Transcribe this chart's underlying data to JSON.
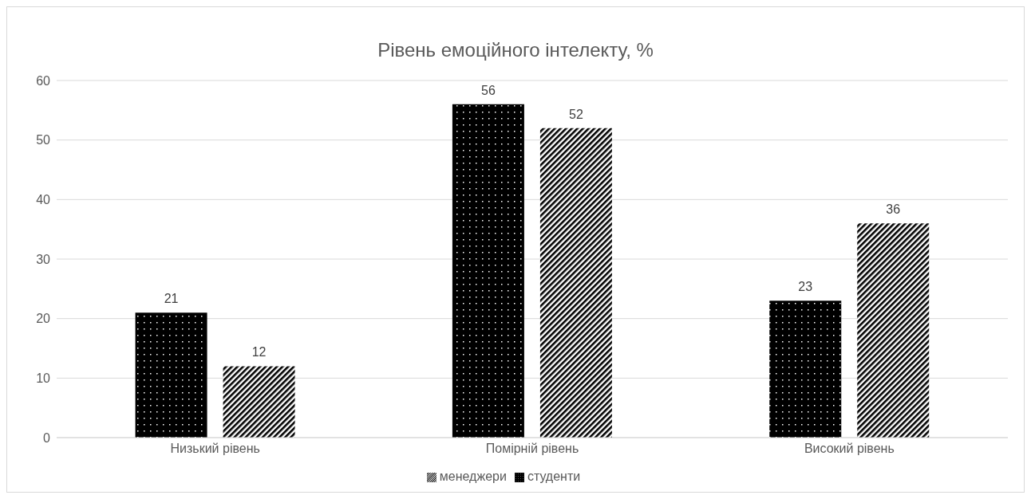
{
  "chart_data": {
    "type": "bar",
    "title": "Рівень емоційного інтелекту, %",
    "categories": [
      "Низький рівень",
      "Помірній рівень",
      "Високий рівень"
    ],
    "series": [
      {
        "name": "студенти",
        "color": "#000000",
        "values": [
          21,
          56,
          23
        ]
      },
      {
        "name": "менеджери",
        "color": "#000000",
        "values": [
          12,
          52,
          36
        ]
      }
    ],
    "ylim": [
      0,
      60
    ],
    "yticks": [
      0,
      10,
      20,
      30,
      40,
      50,
      60
    ],
    "grid": "y",
    "legend": "bottom",
    "data_labels": true
  }
}
